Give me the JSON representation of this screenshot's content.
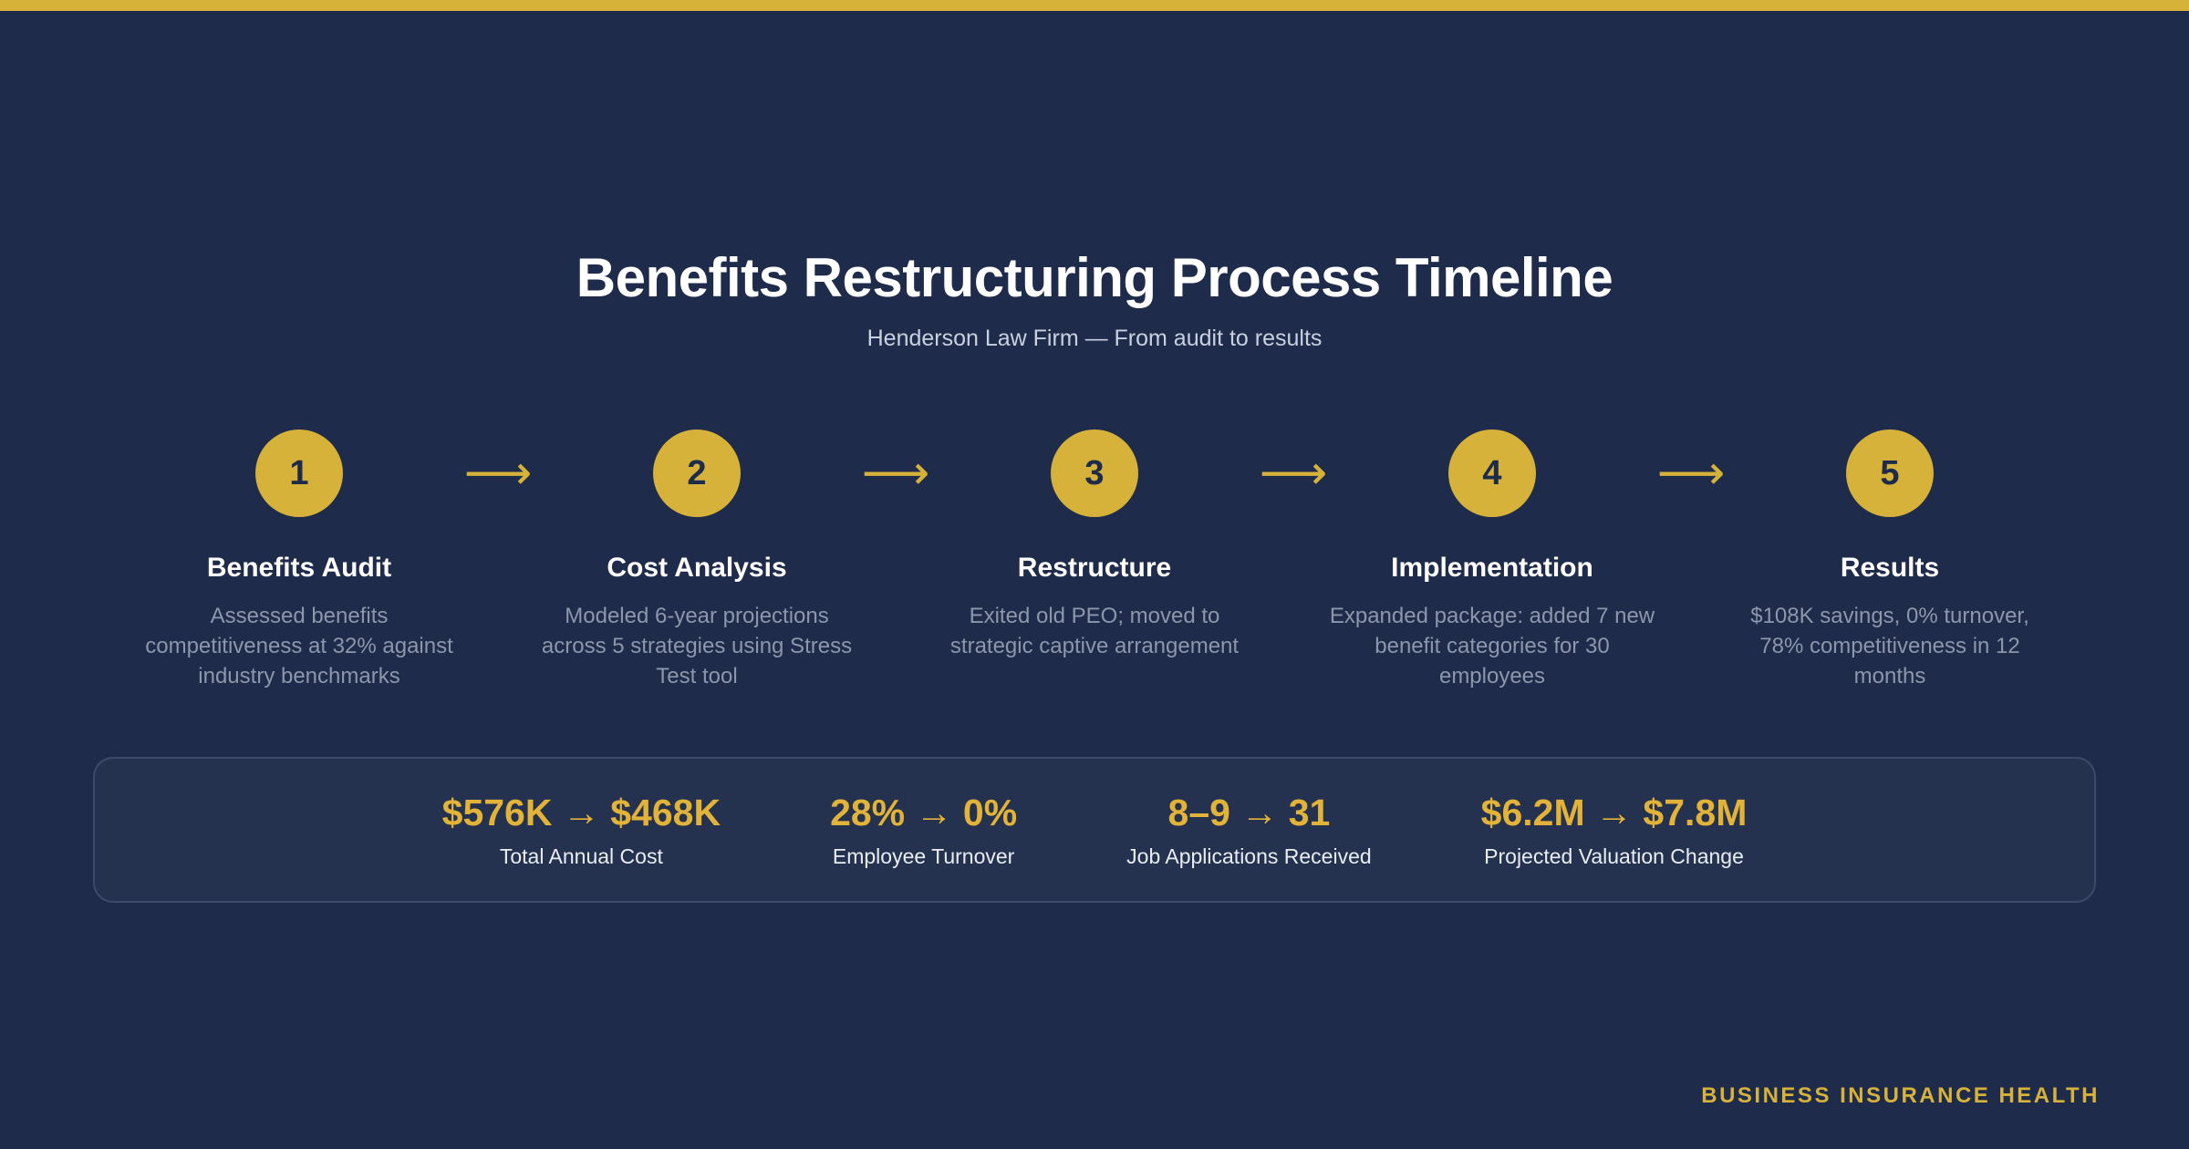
{
  "page": {
    "title": "Benefits Restructuring Process Timeline",
    "subtitle": "Henderson Law Firm — From audit to results",
    "brand": "BUSINESS INSURANCE HEALTH"
  },
  "colors": {
    "background": "#1e2b4a",
    "accent_gold": "#d6b23a",
    "metric_value_gold": "#e2b338",
    "muted_text": "#8d97ab",
    "panel_background": "#24324f",
    "panel_border": "#3c4b69"
  },
  "timeline": {
    "arrow": "⟶",
    "steps": [
      {
        "number": "1",
        "title": "Benefits Audit",
        "description": "Assessed benefits competitiveness at 32% against industry benchmarks"
      },
      {
        "number": "2",
        "title": "Cost Analysis",
        "description": "Modeled 6-year projections across 5 strategies using Stress Test tool"
      },
      {
        "number": "3",
        "title": "Restructure",
        "description": "Exited old PEO; moved to strategic captive arrangement"
      },
      {
        "number": "4",
        "title": "Implementation",
        "description": "Expanded package: added 7 new benefit categories for 30 employees"
      },
      {
        "number": "5",
        "title": "Results",
        "description": "$108K savings, 0% turnover, 78% competitiveness in 12 months"
      }
    ]
  },
  "metrics": [
    {
      "value": "$576K → $468K",
      "label": "Total Annual Cost"
    },
    {
      "value": "28% → 0%",
      "label": "Employee Turnover"
    },
    {
      "value": "8–9 → 31",
      "label": "Job Applications Received"
    },
    {
      "value": "$6.2M → $7.8M",
      "label": "Projected Valuation Change"
    }
  ]
}
